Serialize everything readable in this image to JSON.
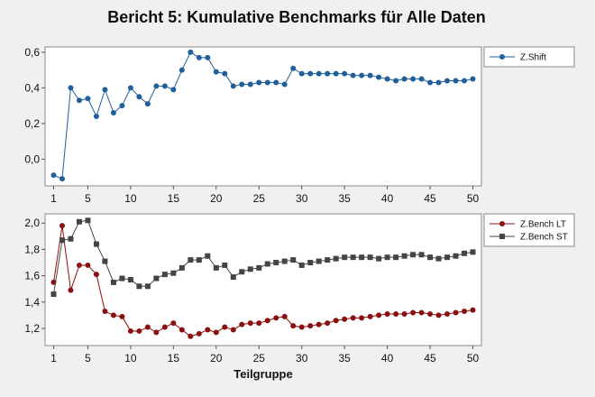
{
  "title": "Bericht 5: Kumulative Benchmarks für Alle Daten",
  "colors": {
    "shift": "#1f5f9c",
    "lt": "#8b0f0f",
    "st": "#444444"
  },
  "chart_data": [
    {
      "type": "line",
      "title": "",
      "xlabel": "",
      "ylabel": "",
      "xlim": [
        0,
        51
      ],
      "ylim": [
        -0.15,
        0.63
      ],
      "xticks": [
        1,
        5,
        10,
        15,
        20,
        25,
        30,
        35,
        40,
        45,
        50
      ],
      "yticks": [
        0.0,
        0.2,
        0.4,
        0.6
      ],
      "ytick_labels": [
        "0,0",
        "0,2",
        "0,4",
        "0,6"
      ],
      "legend_position": "right",
      "x": [
        1,
        2,
        3,
        4,
        5,
        6,
        7,
        8,
        9,
        10,
        11,
        12,
        13,
        14,
        15,
        16,
        17,
        18,
        19,
        20,
        21,
        22,
        23,
        24,
        25,
        26,
        27,
        28,
        29,
        30,
        31,
        32,
        33,
        34,
        35,
        36,
        37,
        38,
        39,
        40,
        41,
        42,
        43,
        44,
        45,
        46,
        47,
        48,
        49,
        50
      ],
      "series": [
        {
          "name": "Z.Shift",
          "marker": "circle",
          "values": [
            -0.09,
            -0.11,
            0.4,
            0.33,
            0.34,
            0.24,
            0.39,
            0.26,
            0.3,
            0.4,
            0.35,
            0.31,
            0.41,
            0.41,
            0.39,
            0.5,
            0.6,
            0.57,
            0.57,
            0.49,
            0.48,
            0.41,
            0.42,
            0.42,
            0.43,
            0.43,
            0.43,
            0.42,
            0.51,
            0.48,
            0.48,
            0.48,
            0.48,
            0.48,
            0.48,
            0.47,
            0.47,
            0.47,
            0.46,
            0.45,
            0.44,
            0.45,
            0.45,
            0.45,
            0.43,
            0.43,
            0.44,
            0.44,
            0.44,
            0.45
          ]
        }
      ]
    },
    {
      "type": "line",
      "title": "",
      "xlabel": "Teilgruppe",
      "ylabel": "",
      "xlim": [
        0,
        51
      ],
      "ylim": [
        1.07,
        2.07
      ],
      "xticks": [
        1,
        5,
        10,
        15,
        20,
        25,
        30,
        35,
        40,
        45,
        50
      ],
      "yticks": [
        1.2,
        1.4,
        1.6,
        1.8,
        2.0
      ],
      "ytick_labels": [
        "1,2",
        "1,4",
        "1,6",
        "1,8",
        "2,0"
      ],
      "legend_position": "right",
      "x": [
        1,
        2,
        3,
        4,
        5,
        6,
        7,
        8,
        9,
        10,
        11,
        12,
        13,
        14,
        15,
        16,
        17,
        18,
        19,
        20,
        21,
        22,
        23,
        24,
        25,
        26,
        27,
        28,
        29,
        30,
        31,
        32,
        33,
        34,
        35,
        36,
        37,
        38,
        39,
        40,
        41,
        42,
        43,
        44,
        45,
        46,
        47,
        48,
        49,
        50
      ],
      "series": [
        {
          "name": "Z.Bench LT",
          "marker": "circle",
          "values": [
            1.55,
            1.98,
            1.49,
            1.68,
            1.68,
            1.61,
            1.33,
            1.3,
            1.29,
            1.18,
            1.18,
            1.21,
            1.17,
            1.21,
            1.24,
            1.19,
            1.14,
            1.16,
            1.19,
            1.17,
            1.21,
            1.19,
            1.23,
            1.24,
            1.24,
            1.26,
            1.28,
            1.29,
            1.22,
            1.21,
            1.22,
            1.23,
            1.24,
            1.26,
            1.27,
            1.28,
            1.28,
            1.29,
            1.3,
            1.31,
            1.31,
            1.31,
            1.32,
            1.32,
            1.31,
            1.3,
            1.31,
            1.32,
            1.33,
            1.34
          ]
        },
        {
          "name": "Z.Bench ST",
          "marker": "square",
          "values": [
            1.46,
            1.87,
            1.88,
            2.01,
            2.02,
            1.84,
            1.71,
            1.55,
            1.58,
            1.57,
            1.52,
            1.52,
            1.58,
            1.61,
            1.62,
            1.66,
            1.72,
            1.72,
            1.75,
            1.66,
            1.68,
            1.59,
            1.63,
            1.65,
            1.66,
            1.69,
            1.7,
            1.71,
            1.72,
            1.68,
            1.7,
            1.71,
            1.72,
            1.73,
            1.74,
            1.74,
            1.74,
            1.74,
            1.73,
            1.74,
            1.74,
            1.75,
            1.76,
            1.76,
            1.74,
            1.73,
            1.74,
            1.75,
            1.77,
            1.78
          ]
        }
      ]
    }
  ]
}
